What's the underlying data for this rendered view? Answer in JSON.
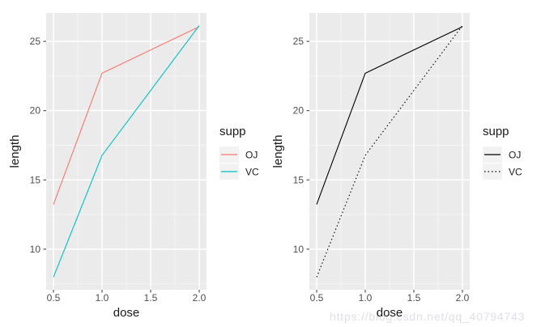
{
  "watermark": "https://blog.csdn.net/qq_40794743",
  "style": {
    "page_bg": "#FFFFFF",
    "panel_bg": "#EBEBEB",
    "grid_major_color": "#FFFFFF",
    "grid_minor_color": "#F6F6F6",
    "axis_text_color": "#4D4D4D",
    "axis_title_color": "#1A1A1A",
    "tick_mark_color": "#333333",
    "legend_key_bg": "#F2F2F2",
    "legend_text_color": "#1A1A1A",
    "watermark_color": "#DEDEE5"
  },
  "chart_data": [
    {
      "type": "line",
      "title": "",
      "xlabel": "dose",
      "ylabel": "length",
      "legend_title": "supp",
      "legend_position": "right",
      "grid": true,
      "x": [
        0.5,
        1.0,
        2.0
      ],
      "series": [
        {
          "name": "OJ",
          "values": [
            13.23,
            22.7,
            26.06
          ],
          "color": "#F8766D",
          "dash": ""
        },
        {
          "name": "VC",
          "values": [
            7.98,
            16.77,
            26.14
          ],
          "color": "#00BFC4",
          "dash": ""
        }
      ],
      "xlim": [
        0.425,
        2.075
      ],
      "ylim": [
        7.07,
        27.05
      ],
      "x_ticks": {
        "values": [
          0.5,
          1.0,
          1.5,
          2.0
        ],
        "labels": [
          "0.5",
          "1.0",
          "1.5",
          "2.0"
        ]
      },
      "y_ticks": {
        "values": [
          10,
          15,
          20,
          25
        ],
        "labels": [
          "10",
          "15",
          "20",
          "25"
        ]
      },
      "x_minor_ticks": [
        0.75,
        1.25,
        1.75
      ],
      "y_minor_ticks": [
        7.5,
        12.5,
        17.5,
        22.5
      ]
    },
    {
      "type": "line",
      "title": "",
      "xlabel": "dose",
      "ylabel": "length",
      "legend_title": "supp",
      "legend_position": "right",
      "grid": true,
      "x": [
        0.5,
        1.0,
        2.0
      ],
      "series": [
        {
          "name": "OJ",
          "values": [
            13.23,
            22.7,
            26.06
          ],
          "color": "#000000",
          "dash": ""
        },
        {
          "name": "VC",
          "values": [
            7.98,
            16.77,
            26.14
          ],
          "color": "#000000",
          "dash": "1.5 3"
        }
      ],
      "xlim": [
        0.425,
        2.075
      ],
      "ylim": [
        7.07,
        27.05
      ],
      "x_ticks": {
        "values": [
          0.5,
          1.0,
          1.5,
          2.0
        ],
        "labels": [
          "0.5",
          "1.0",
          "1.5",
          "2.0"
        ]
      },
      "y_ticks": {
        "values": [
          10,
          15,
          20,
          25
        ],
        "labels": [
          "10",
          "15",
          "20",
          "25"
        ]
      },
      "x_minor_ticks": [
        0.75,
        1.25,
        1.75
      ],
      "y_minor_ticks": [
        7.5,
        12.5,
        17.5,
        22.5
      ]
    }
  ]
}
